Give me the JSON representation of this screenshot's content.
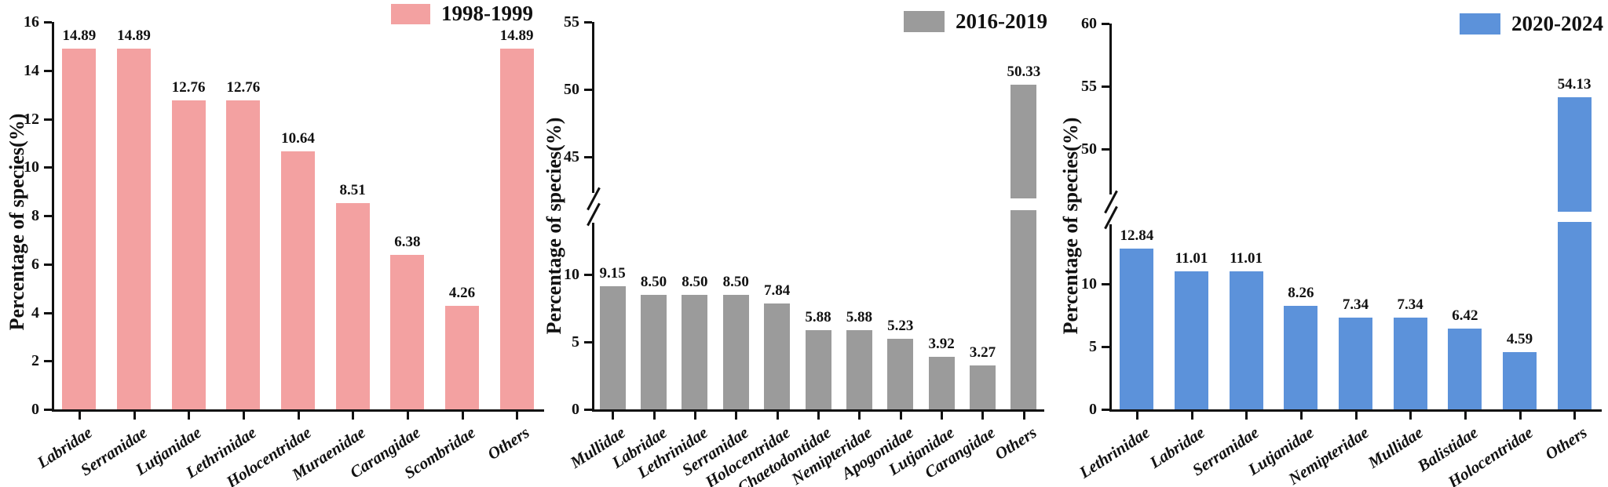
{
  "chart_data": [
    {
      "type": "bar",
      "title": "",
      "legend": "1998-1999",
      "legend_position": "upper right",
      "color": "#f3a1a1",
      "ylabel": "Percentage of species(%)",
      "xlabel": "",
      "categories": [
        "Labridae",
        "Serranidae",
        "Lutjanidae",
        "Lethrinidae",
        "Holocentridae",
        "Muraenidae",
        "Carangidae",
        "Scombridae",
        "Others"
      ],
      "values": [
        14.89,
        14.89,
        12.76,
        12.76,
        10.64,
        8.51,
        6.38,
        4.26,
        14.89
      ],
      "ylim": [
        0,
        16
      ],
      "yticks": [
        0,
        2,
        4,
        6,
        8,
        10,
        12,
        14,
        16
      ],
      "axis_break": false,
      "grid": false
    },
    {
      "type": "bar",
      "title": "",
      "legend": "2016-2019",
      "legend_position": "upper right",
      "color": "#9b9b9b",
      "ylabel": "Percentage of species(%)",
      "xlabel": "",
      "categories": [
        "Mullidae",
        "Labridae",
        "Lethrinidae",
        "Serranidae",
        "Holocentridae",
        "Chaetodontidae",
        "Nemipteridae",
        "Apogonidae",
        "Lutjanidae",
        "Carangidae",
        "Others"
      ],
      "values": [
        9.15,
        8.5,
        8.5,
        8.5,
        7.84,
        5.88,
        5.88,
        5.23,
        3.92,
        3.27,
        50.33
      ],
      "ylim": [
        0,
        55
      ],
      "yticks_lower": [
        0,
        5,
        10
      ],
      "yticks_upper": [
        45,
        50,
        55
      ],
      "axis_break": true,
      "grid": false
    },
    {
      "type": "bar",
      "title": "",
      "legend": "2020-2024",
      "legend_position": "upper right",
      "color": "#5c92da",
      "ylabel": "Percentage of species(%)",
      "xlabel": "",
      "categories": [
        "Lethrinidae",
        "Labridae",
        "Serranidae",
        "Lutjanidae",
        "Nemipteridae",
        "Mullidae",
        "Balistidae",
        "Holocentridae",
        "Others"
      ],
      "values": [
        12.84,
        11.01,
        11.01,
        8.26,
        7.34,
        7.34,
        6.42,
        4.59,
        54.13
      ],
      "ylim": [
        0,
        60
      ],
      "yticks_lower": [
        0,
        5,
        10
      ],
      "yticks_upper": [
        50,
        55,
        60
      ],
      "axis_break": true,
      "grid": false
    }
  ]
}
